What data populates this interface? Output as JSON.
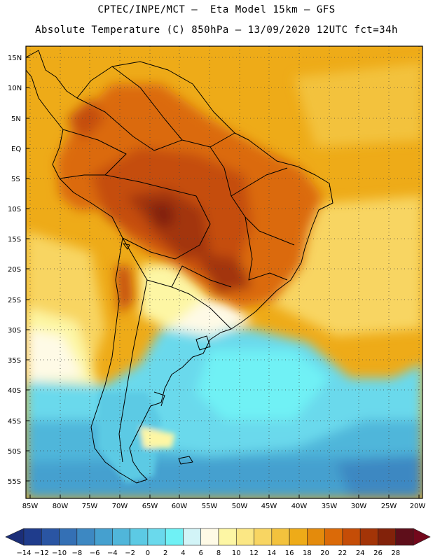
{
  "header": {
    "line1": "CPTEC/INPE/MCT –  Eta Model 15km – GFS",
    "line2": "Absolute Temperature (C) 850hPa – 13/09/2020 12UTC fct=34h"
  },
  "axes": {
    "lat_labels": [
      "15N",
      "10N",
      "5N",
      "EQ",
      "5S",
      "10S",
      "15S",
      "20S",
      "25S",
      "30S",
      "35S",
      "40S",
      "45S",
      "50S",
      "55S"
    ],
    "lon_labels": [
      "85W",
      "80W",
      "75W",
      "70W",
      "65W",
      "60W",
      "55W",
      "50W",
      "45W",
      "40W",
      "35W",
      "30W",
      "25W",
      "20W"
    ]
  },
  "colorbar": {
    "labels": [
      "-14",
      "-12",
      "-10",
      "-8",
      "-6",
      "-4",
      "-2",
      "0",
      "2",
      "4",
      "6",
      "8",
      "10",
      "12",
      "14",
      "16",
      "18",
      "20",
      "22",
      "24",
      "26",
      "28"
    ],
    "colors": [
      "#1f3c8c",
      "#2a55a3",
      "#3470b5",
      "#3d88c2",
      "#45a0cf",
      "#50b6da",
      "#5ccae4",
      "#6ad9ec",
      "#6ff1f5",
      "#d2f4f7",
      "#fefae6",
      "#fdf6a4",
      "#fbe784",
      "#f8d562",
      "#f3c23d",
      "#eeab18",
      "#e48b0c",
      "#db6a08",
      "#c54d07",
      "#a33407",
      "#82220a",
      "#5e0e1a"
    ],
    "under_color": "#1b2e78",
    "over_color": "#73081c"
  }
}
